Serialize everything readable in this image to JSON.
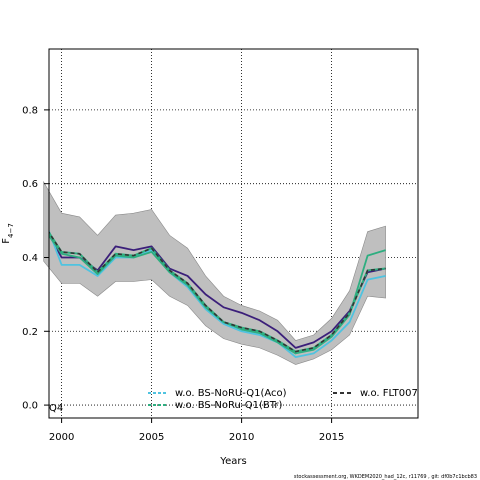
{
  "chart_data": {
    "type": "line",
    "title": "",
    "xlabel": "Years",
    "ylabel_main": "F",
    "ylabel_sub": "4−7",
    "xlim": [
      1999.3,
      2019.8
    ],
    "ylim": [
      -0.035,
      0.965
    ],
    "x_ticks": [
      2000,
      2005,
      2010,
      2015
    ],
    "y_ticks": [
      0.0,
      0.2,
      0.4,
      0.6,
      0.8
    ],
    "y_tick_labels": [
      "0.0",
      "0.2",
      "0.4",
      "0.6",
      "0.8"
    ],
    "grid": "dotted",
    "years": [
      1999,
      2000,
      2001,
      2002,
      2003,
      2004,
      2005,
      2006,
      2007,
      2008,
      2009,
      2010,
      2011,
      2012,
      2013,
      2014,
      2015,
      2016,
      2017,
      2018
    ],
    "band": {
      "lower": [
        0.39,
        0.33,
        0.33,
        0.295,
        0.335,
        0.335,
        0.34,
        0.295,
        0.27,
        0.215,
        0.18,
        0.165,
        0.155,
        0.135,
        0.11,
        0.125,
        0.15,
        0.19,
        0.295,
        0.29
      ],
      "upper": [
        0.605,
        0.52,
        0.51,
        0.46,
        0.515,
        0.52,
        0.53,
        0.46,
        0.425,
        0.35,
        0.295,
        0.27,
        0.255,
        0.23,
        0.175,
        0.19,
        0.235,
        0.31,
        0.47,
        0.485
      ],
      "color": "#bfbfbf"
    },
    "series": [
      {
        "values": [
          0.49,
          0.4,
          0.4,
          0.365,
          0.43,
          0.42,
          0.43,
          0.37,
          0.35,
          0.3,
          0.265,
          0.25,
          0.23,
          0.2,
          0.155,
          0.17,
          0.2,
          0.255,
          0.36,
          0.37
        ],
        "color": "#3b1f7a",
        "dash": ""
      },
      {
        "values": [
          0.51,
          0.38,
          0.38,
          0.35,
          0.4,
          0.4,
          0.42,
          0.36,
          0.32,
          0.26,
          0.22,
          0.2,
          0.19,
          0.17,
          0.13,
          0.14,
          0.175,
          0.225,
          0.34,
          0.35
        ],
        "color": "#4fc3e0",
        "dash": ""
      },
      {
        "values": [
          0.48,
          0.41,
          0.4,
          0.355,
          0.405,
          0.4,
          0.415,
          0.36,
          0.325,
          0.265,
          0.225,
          0.205,
          0.195,
          0.17,
          0.14,
          0.15,
          0.185,
          0.245,
          0.405,
          0.42
        ],
        "color": "#2eae80",
        "dash": ""
      },
      {
        "values": [
          0.49,
          0.415,
          0.41,
          0.36,
          0.41,
          0.405,
          0.425,
          0.365,
          0.33,
          0.27,
          0.225,
          0.21,
          0.2,
          0.175,
          0.145,
          0.155,
          0.19,
          0.25,
          0.365,
          0.37
        ],
        "color": "#333333",
        "dash": "4,3"
      }
    ],
    "legend": [
      {
        "label": "w.o. BS-NoRU-Q1(Aco)",
        "color": "#4fc3e0",
        "dash": "3,2"
      },
      {
        "label": "w.o. BS-NoRu-Q1(BTr)",
        "color": "#2eae80",
        "dash": "3,2"
      },
      {
        "label": "w.o. FLT007",
        "color": "#333333",
        "dash": "4,3"
      }
    ],
    "legend_position": "bottom",
    "corner_label": "Q4",
    "footnote": "stockassessment.org, WKDEM2020_had_12c, r11769 , git: df0b7c1bcb83"
  }
}
